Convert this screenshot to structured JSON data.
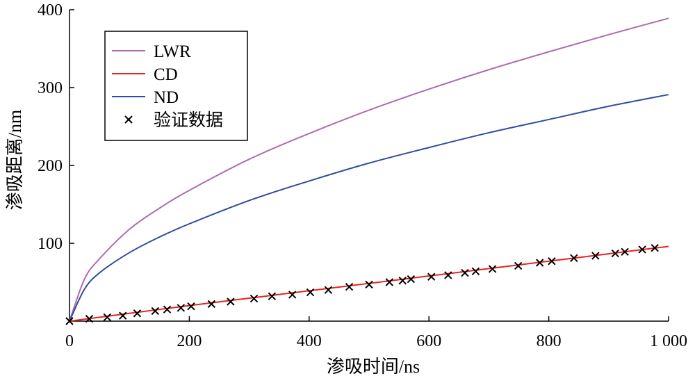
{
  "chart_data": {
    "type": "line",
    "title": "",
    "xlabel": "渗吸时间/ns",
    "ylabel": "渗吸距离/nm",
    "xlim": [
      0,
      1000
    ],
    "ylim": [
      0,
      400
    ],
    "xticks": [
      0,
      200,
      400,
      600,
      800,
      1000
    ],
    "xtick_labels": [
      "0",
      "200",
      "400",
      "600",
      "800",
      "1 000"
    ],
    "yticks": [
      100,
      200,
      300,
      400
    ],
    "ytick_labels": [
      "100",
      "200",
      "300",
      "400"
    ],
    "grid": false,
    "legend_position": "top-left",
    "series": [
      {
        "name": "LWR",
        "type": "line",
        "color": "#b06bb0",
        "x": [
          0,
          25,
          50,
          100,
          150,
          200,
          300,
          400,
          500,
          600,
          700,
          800,
          900,
          1000
        ],
        "y": [
          0,
          54,
          80,
          118,
          145,
          168,
          208,
          241,
          271,
          298,
          323,
          346,
          368,
          389
        ]
      },
      {
        "name": "CD",
        "type": "line",
        "color": "#e8231f",
        "x": [
          0,
          100,
          200,
          300,
          400,
          500,
          600,
          700,
          800,
          900,
          1000
        ],
        "y": [
          0,
          10,
          20,
          29.5,
          39,
          48.5,
          58,
          67.5,
          77,
          86.5,
          96
        ]
      },
      {
        "name": "ND",
        "type": "line",
        "color": "#2f4d9e",
        "x": [
          0,
          25,
          50,
          100,
          150,
          200,
          300,
          400,
          500,
          600,
          700,
          800,
          900,
          1000
        ],
        "y": [
          0,
          41,
          62,
          88,
          108,
          125,
          155,
          180,
          203,
          223,
          242,
          259,
          276,
          291
        ]
      },
      {
        "name": "验证数据",
        "type": "scatter",
        "color": "#000000",
        "marker": "x",
        "x": [
          0,
          33,
          63,
          89,
          113,
          143,
          163,
          186,
          203,
          237,
          269,
          308,
          338,
          372,
          402,
          432,
          467,
          500,
          534,
          556,
          570,
          604,
          632,
          660,
          678,
          706,
          749,
          785,
          805,
          842,
          878,
          911,
          927,
          956,
          977
        ],
        "y": [
          0,
          3,
          5,
          7,
          10,
          13,
          15,
          17,
          19,
          22,
          25,
          29,
          32,
          34,
          37,
          40,
          44,
          47,
          50,
          52,
          54,
          57,
          59,
          62,
          64,
          67,
          71,
          75,
          77,
          81,
          84,
          87,
          89,
          92,
          94
        ]
      }
    ]
  }
}
